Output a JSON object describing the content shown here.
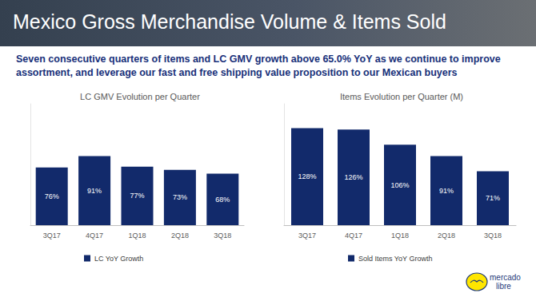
{
  "title": "Mexico Gross Merchandise Volume & Items Sold",
  "subtitle": "Seven consecutive quarters of items and LC GMV growth above 65.0% YoY as we continue to improve assortment, and leverage our fast and free shipping value proposition to our Mexican buyers",
  "logo": [
    "mercado",
    "libre"
  ],
  "chart_data": [
    {
      "type": "bar",
      "title": "LC GMV Evolution per Quarter",
      "categories": [
        "3Q17",
        "4Q17",
        "1Q18",
        "2Q18",
        "3Q18"
      ],
      "series": [
        {
          "name": "LC YoY Growth",
          "color": "#122a6b",
          "values": [
            76,
            91,
            77,
            73,
            68
          ]
        }
      ],
      "value_labels": [
        "76%",
        "91%",
        "77%",
        "73%",
        "68%"
      ],
      "data_labels": true,
      "ylim": [
        0,
        160
      ],
      "tick_labels": "x",
      "grid": false,
      "legend": "bottom-left"
    },
    {
      "type": "bar",
      "title": "Items Evolution per Quarter (M)",
      "categories": [
        "3Q17",
        "4Q17",
        "1Q18",
        "2Q18",
        "3Q18"
      ],
      "series": [
        {
          "name": "Sold Items YoY Growth",
          "color": "#122a6b",
          "values": [
            128,
            126,
            106,
            91,
            71
          ]
        }
      ],
      "value_labels": [
        "128%",
        "126%",
        "106%",
        "91%",
        "71%"
      ],
      "data_labels": true,
      "ylim": [
        0,
        160
      ],
      "tick_labels": "x",
      "grid": false,
      "legend": "bottom-left"
    }
  ]
}
